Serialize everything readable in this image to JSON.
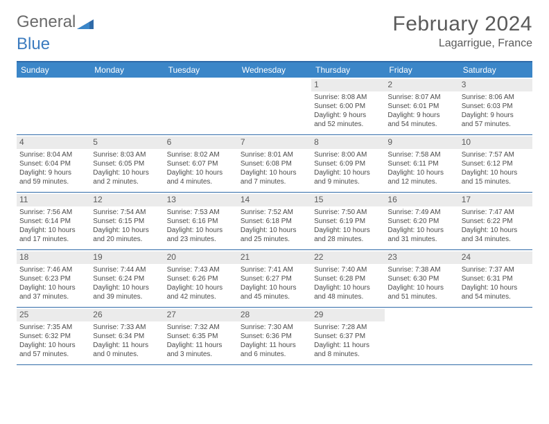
{
  "brand": {
    "word1": "General",
    "word2": "Blue"
  },
  "title": "February 2024",
  "location": "Lagarrigue, France",
  "colors": {
    "header_bg": "#3b86c8",
    "header_border": "#2f6aa8",
    "daynum_bg": "#ebebeb",
    "text": "#5a5a5a",
    "body_text": "#4a4a4a",
    "brand_gray": "#6a6a6a",
    "brand_blue": "#3b7bbf"
  },
  "days_of_week": [
    "Sunday",
    "Monday",
    "Tuesday",
    "Wednesday",
    "Thursday",
    "Friday",
    "Saturday"
  ],
  "weeks": [
    [
      null,
      null,
      null,
      null,
      {
        "n": "1",
        "sr": "Sunrise: 8:08 AM",
        "ss": "Sunset: 6:00 PM",
        "d1": "Daylight: 9 hours",
        "d2": "and 52 minutes."
      },
      {
        "n": "2",
        "sr": "Sunrise: 8:07 AM",
        "ss": "Sunset: 6:01 PM",
        "d1": "Daylight: 9 hours",
        "d2": "and 54 minutes."
      },
      {
        "n": "3",
        "sr": "Sunrise: 8:06 AM",
        "ss": "Sunset: 6:03 PM",
        "d1": "Daylight: 9 hours",
        "d2": "and 57 minutes."
      }
    ],
    [
      {
        "n": "4",
        "sr": "Sunrise: 8:04 AM",
        "ss": "Sunset: 6:04 PM",
        "d1": "Daylight: 9 hours",
        "d2": "and 59 minutes."
      },
      {
        "n": "5",
        "sr": "Sunrise: 8:03 AM",
        "ss": "Sunset: 6:05 PM",
        "d1": "Daylight: 10 hours",
        "d2": "and 2 minutes."
      },
      {
        "n": "6",
        "sr": "Sunrise: 8:02 AM",
        "ss": "Sunset: 6:07 PM",
        "d1": "Daylight: 10 hours",
        "d2": "and 4 minutes."
      },
      {
        "n": "7",
        "sr": "Sunrise: 8:01 AM",
        "ss": "Sunset: 6:08 PM",
        "d1": "Daylight: 10 hours",
        "d2": "and 7 minutes."
      },
      {
        "n": "8",
        "sr": "Sunrise: 8:00 AM",
        "ss": "Sunset: 6:09 PM",
        "d1": "Daylight: 10 hours",
        "d2": "and 9 minutes."
      },
      {
        "n": "9",
        "sr": "Sunrise: 7:58 AM",
        "ss": "Sunset: 6:11 PM",
        "d1": "Daylight: 10 hours",
        "d2": "and 12 minutes."
      },
      {
        "n": "10",
        "sr": "Sunrise: 7:57 AM",
        "ss": "Sunset: 6:12 PM",
        "d1": "Daylight: 10 hours",
        "d2": "and 15 minutes."
      }
    ],
    [
      {
        "n": "11",
        "sr": "Sunrise: 7:56 AM",
        "ss": "Sunset: 6:14 PM",
        "d1": "Daylight: 10 hours",
        "d2": "and 17 minutes."
      },
      {
        "n": "12",
        "sr": "Sunrise: 7:54 AM",
        "ss": "Sunset: 6:15 PM",
        "d1": "Daylight: 10 hours",
        "d2": "and 20 minutes."
      },
      {
        "n": "13",
        "sr": "Sunrise: 7:53 AM",
        "ss": "Sunset: 6:16 PM",
        "d1": "Daylight: 10 hours",
        "d2": "and 23 minutes."
      },
      {
        "n": "14",
        "sr": "Sunrise: 7:52 AM",
        "ss": "Sunset: 6:18 PM",
        "d1": "Daylight: 10 hours",
        "d2": "and 25 minutes."
      },
      {
        "n": "15",
        "sr": "Sunrise: 7:50 AM",
        "ss": "Sunset: 6:19 PM",
        "d1": "Daylight: 10 hours",
        "d2": "and 28 minutes."
      },
      {
        "n": "16",
        "sr": "Sunrise: 7:49 AM",
        "ss": "Sunset: 6:20 PM",
        "d1": "Daylight: 10 hours",
        "d2": "and 31 minutes."
      },
      {
        "n": "17",
        "sr": "Sunrise: 7:47 AM",
        "ss": "Sunset: 6:22 PM",
        "d1": "Daylight: 10 hours",
        "d2": "and 34 minutes."
      }
    ],
    [
      {
        "n": "18",
        "sr": "Sunrise: 7:46 AM",
        "ss": "Sunset: 6:23 PM",
        "d1": "Daylight: 10 hours",
        "d2": "and 37 minutes."
      },
      {
        "n": "19",
        "sr": "Sunrise: 7:44 AM",
        "ss": "Sunset: 6:24 PM",
        "d1": "Daylight: 10 hours",
        "d2": "and 39 minutes."
      },
      {
        "n": "20",
        "sr": "Sunrise: 7:43 AM",
        "ss": "Sunset: 6:26 PM",
        "d1": "Daylight: 10 hours",
        "d2": "and 42 minutes."
      },
      {
        "n": "21",
        "sr": "Sunrise: 7:41 AM",
        "ss": "Sunset: 6:27 PM",
        "d1": "Daylight: 10 hours",
        "d2": "and 45 minutes."
      },
      {
        "n": "22",
        "sr": "Sunrise: 7:40 AM",
        "ss": "Sunset: 6:28 PM",
        "d1": "Daylight: 10 hours",
        "d2": "and 48 minutes."
      },
      {
        "n": "23",
        "sr": "Sunrise: 7:38 AM",
        "ss": "Sunset: 6:30 PM",
        "d1": "Daylight: 10 hours",
        "d2": "and 51 minutes."
      },
      {
        "n": "24",
        "sr": "Sunrise: 7:37 AM",
        "ss": "Sunset: 6:31 PM",
        "d1": "Daylight: 10 hours",
        "d2": "and 54 minutes."
      }
    ],
    [
      {
        "n": "25",
        "sr": "Sunrise: 7:35 AM",
        "ss": "Sunset: 6:32 PM",
        "d1": "Daylight: 10 hours",
        "d2": "and 57 minutes."
      },
      {
        "n": "26",
        "sr": "Sunrise: 7:33 AM",
        "ss": "Sunset: 6:34 PM",
        "d1": "Daylight: 11 hours",
        "d2": "and 0 minutes."
      },
      {
        "n": "27",
        "sr": "Sunrise: 7:32 AM",
        "ss": "Sunset: 6:35 PM",
        "d1": "Daylight: 11 hours",
        "d2": "and 3 minutes."
      },
      {
        "n": "28",
        "sr": "Sunrise: 7:30 AM",
        "ss": "Sunset: 6:36 PM",
        "d1": "Daylight: 11 hours",
        "d2": "and 6 minutes."
      },
      {
        "n": "29",
        "sr": "Sunrise: 7:28 AM",
        "ss": "Sunset: 6:37 PM",
        "d1": "Daylight: 11 hours",
        "d2": "and 8 minutes."
      },
      null,
      null
    ]
  ]
}
